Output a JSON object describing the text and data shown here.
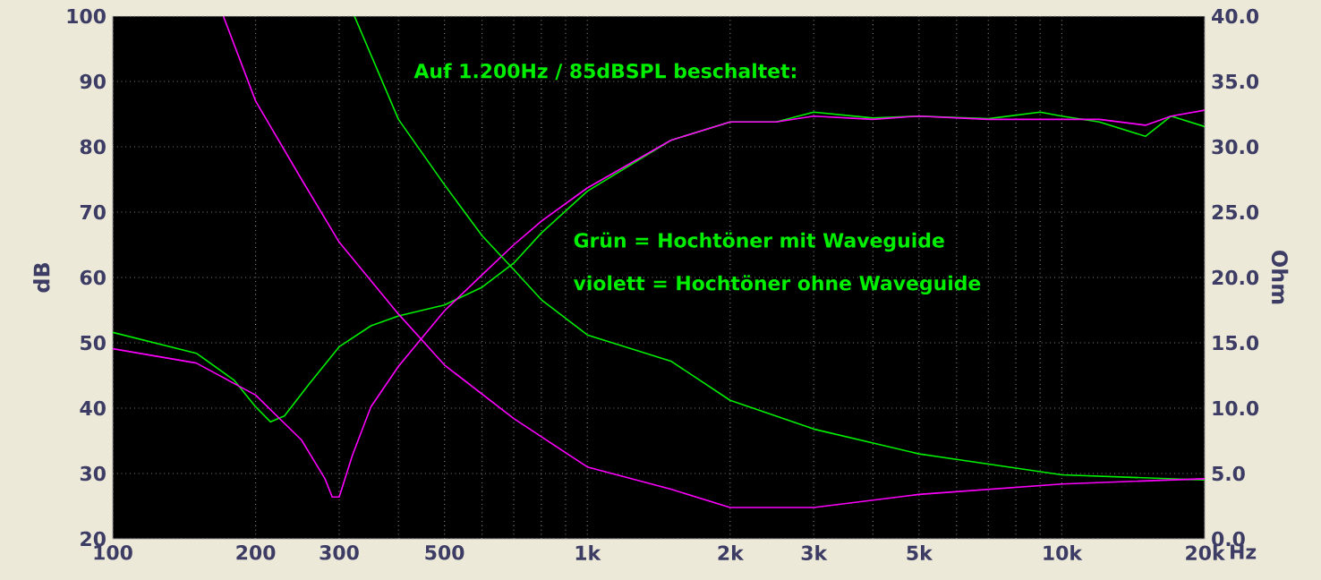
{
  "chart_data": {
    "type": "line",
    "ylabel": "dB",
    "y2label": "Ohm",
    "annotations": [
      "Auf 1.200Hz / 85dBSPL beschaltet:",
      "Grün = Hochtöner mit Waveguide",
      "violett = Hochtöner ohne Waveguide"
    ],
    "log": "x",
    "xlim": [
      100,
      20000
    ],
    "xticks": [
      {
        "value": 100,
        "label": "100"
      },
      {
        "value": 200,
        "label": "200"
      },
      {
        "value": 300,
        "label": "300"
      },
      {
        "value": 400,
        "label": null
      },
      {
        "value": 500,
        "label": "500"
      },
      {
        "value": 600,
        "label": null
      },
      {
        "value": 700,
        "label": null
      },
      {
        "value": 800,
        "label": null
      },
      {
        "value": 900,
        "label": null
      },
      {
        "value": 1000,
        "label": "1k"
      },
      {
        "value": 2000,
        "label": "2k"
      },
      {
        "value": 3000,
        "label": "3k"
      },
      {
        "value": 4000,
        "label": null
      },
      {
        "value": 5000,
        "label": "5k"
      },
      {
        "value": 6000,
        "label": null
      },
      {
        "value": 7000,
        "label": null
      },
      {
        "value": 8000,
        "label": null
      },
      {
        "value": 9000,
        "label": null
      },
      {
        "value": 10000,
        "label": "10k"
      },
      {
        "value": 20000,
        "label": "20k"
      }
    ],
    "xlabel": "Hz",
    "ylim": [
      20,
      100
    ],
    "yticks": [
      20,
      30,
      40,
      50,
      60,
      70,
      80,
      90,
      100
    ],
    "y2lim": [
      0,
      40
    ],
    "y2ticks": [
      {
        "value": 0,
        "label": "0.0"
      },
      {
        "value": 5,
        "label": "5.0"
      },
      {
        "value": 10,
        "label": "10.0"
      },
      {
        "value": 15,
        "label": "15.0"
      },
      {
        "value": 20,
        "label": "20.0"
      },
      {
        "value": 25,
        "label": "25.0"
      },
      {
        "value": 30,
        "label": "30.0"
      },
      {
        "value": 35,
        "label": "35.0"
      },
      {
        "value": 40,
        "label": "40.0"
      }
    ],
    "grid": true,
    "marker": "none",
    "line_style": "solid",
    "series": [
      {
        "color": "#00ee00",
        "x": [
          100,
          150,
          180,
          200,
          215,
          230,
          260,
          300,
          350,
          400,
          500,
          600,
          700,
          800,
          1000,
          1500,
          2000,
          2500,
          3000,
          4000,
          5000,
          7000,
          9000,
          10000,
          12000,
          15000,
          17000,
          20000
        ],
        "values": [
          51.6,
          48.4,
          44.3,
          40.2,
          37.9,
          38.8,
          43.8,
          49.4,
          52.6,
          54.1,
          55.8,
          58.5,
          62.2,
          66.8,
          73.2,
          81.0,
          83.8,
          83.8,
          85.3,
          84.4,
          84.7,
          84.3,
          85.3,
          84.7,
          83.8,
          81.6,
          84.7,
          83.1
        ]
      },
      {
        "color": "#ff00ff",
        "x": [
          100,
          150,
          200,
          250,
          280,
          290,
          300,
          320,
          350,
          400,
          500,
          600,
          700,
          800,
          1000,
          1500,
          2000,
          2500,
          3000,
          4000,
          5000,
          7000,
          10000,
          12000,
          15000,
          17000,
          20000
        ],
        "values": [
          49.1,
          46.9,
          42.0,
          35.1,
          29.2,
          26.4,
          26.4,
          32.8,
          40.2,
          46.4,
          54.9,
          60.4,
          65.0,
          68.6,
          73.7,
          81.0,
          83.8,
          83.8,
          84.7,
          84.2,
          84.7,
          84.2,
          84.2,
          84.2,
          83.3,
          84.7,
          85.6
        ]
      },
      {
        "color": "#00ee00",
        "axis": "y2",
        "x": [
          323,
          400,
          500,
          600,
          700,
          800,
          1000,
          1500,
          2000,
          3000,
          5000,
          10000,
          20000
        ],
        "values": [
          40,
          32.1,
          27.1,
          23.2,
          20.6,
          18.3,
          15.6,
          13.6,
          10.6,
          8.4,
          6.5,
          4.9,
          4.5
        ]
      },
      {
        "color": "#ff00ff",
        "axis": "y2",
        "x": [
          171,
          200,
          250,
          300,
          400,
          500,
          700,
          1000,
          1500,
          2000,
          3000,
          5000,
          10000,
          20000
        ],
        "values": [
          40,
          33.5,
          27.5,
          22.7,
          17.2,
          13.3,
          9.2,
          5.5,
          3.8,
          2.4,
          2.4,
          3.4,
          4.2,
          4.6
        ]
      }
    ]
  }
}
